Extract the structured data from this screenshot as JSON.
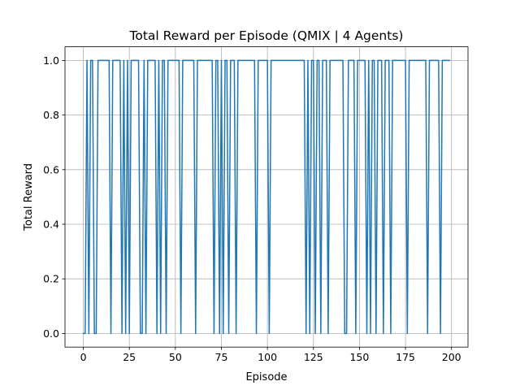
{
  "chart_data": {
    "type": "line",
    "title": "Total Reward per Episode (QMIX | 4 Agents)",
    "xlabel": "Episode",
    "ylabel": "Total Reward",
    "xlim": [
      -9.95,
      208.95
    ],
    "ylim": [
      -0.05,
      1.05
    ],
    "xticks": [
      0,
      25,
      50,
      75,
      100,
      125,
      150,
      175,
      200
    ],
    "yticks": [
      0.0,
      0.2,
      0.4,
      0.6,
      0.8,
      1.0
    ],
    "ytick_labels": [
      "0.0",
      "0.2",
      "0.4",
      "0.6",
      "0.8",
      "1.0"
    ],
    "grid": true,
    "line_color": "#1f77b4",
    "series": [
      {
        "x": [
          0,
          1,
          2,
          3,
          4,
          5,
          6,
          7,
          8,
          9,
          10,
          11,
          12,
          13,
          14,
          15,
          16,
          17,
          18,
          19,
          20,
          21,
          22,
          23,
          24,
          25,
          26,
          27,
          28,
          29,
          30,
          31,
          32,
          33,
          34,
          35,
          36,
          37,
          38,
          39,
          40,
          41,
          42,
          43,
          44,
          45,
          46,
          47,
          48,
          49,
          50,
          51,
          52,
          53,
          54,
          55,
          56,
          57,
          58,
          59,
          60,
          61,
          62,
          63,
          64,
          65,
          66,
          67,
          68,
          69,
          70,
          71,
          72,
          73,
          74,
          75,
          76,
          77,
          78,
          79,
          80,
          81,
          82,
          83,
          84,
          85,
          86,
          87,
          88,
          89,
          90,
          91,
          92,
          93,
          94,
          95,
          96,
          97,
          98,
          99,
          100,
          101,
          102,
          103,
          104,
          105,
          106,
          107,
          108,
          109,
          110,
          111,
          112,
          113,
          114,
          115,
          116,
          117,
          118,
          119,
          120,
          121,
          122,
          123,
          124,
          125,
          126,
          127,
          128,
          129,
          130,
          131,
          132,
          133,
          134,
          135,
          136,
          137,
          138,
          139,
          140,
          141,
          142,
          143,
          144,
          145,
          146,
          147,
          148,
          149,
          150,
          151,
          152,
          153,
          154,
          155,
          156,
          157,
          158,
          159,
          160,
          161,
          162,
          163,
          164,
          165,
          166,
          167,
          168,
          169,
          170,
          171,
          172,
          173,
          174,
          175,
          176,
          177,
          178,
          179,
          180,
          181,
          182,
          183,
          184,
          185,
          186,
          187,
          188,
          189,
          190,
          191,
          192,
          193,
          194,
          195,
          196,
          197,
          198,
          199
        ],
        "values": [
          0,
          0,
          1,
          0,
          1,
          1,
          0,
          0,
          1,
          1,
          1,
          1,
          1,
          1,
          1,
          0,
          1,
          1,
          1,
          1,
          1,
          0,
          1,
          0,
          1,
          0,
          1,
          1,
          1,
          1,
          1,
          0,
          0,
          1,
          0,
          1,
          1,
          1,
          1,
          1,
          0,
          1,
          0,
          1,
          1,
          0,
          1,
          1,
          1,
          1,
          1,
          1,
          1,
          0,
          1,
          1,
          1,
          1,
          1,
          1,
          1,
          0,
          1,
          1,
          1,
          1,
          1,
          1,
          1,
          1,
          1,
          0,
          1,
          1,
          0,
          1,
          0,
          1,
          1,
          0,
          1,
          1,
          1,
          0,
          1,
          1,
          1,
          1,
          1,
          1,
          1,
          1,
          1,
          1,
          0,
          1,
          1,
          1,
          1,
          1,
          1,
          0,
          1,
          1,
          1,
          1,
          1,
          1,
          1,
          1,
          1,
          1,
          1,
          1,
          1,
          1,
          1,
          1,
          1,
          1,
          1,
          0,
          1,
          0,
          1,
          1,
          0,
          1,
          1,
          0,
          1,
          1,
          1,
          0,
          1,
          1,
          1,
          1,
          1,
          1,
          1,
          1,
          0,
          0,
          1,
          1,
          1,
          1,
          0,
          1,
          1,
          1,
          1,
          1,
          0,
          1,
          0,
          1,
          1,
          0,
          1,
          1,
          1,
          0,
          1,
          1,
          1,
          0,
          1,
          1,
          1,
          1,
          1,
          1,
          1,
          1,
          0,
          1,
          1,
          1,
          1,
          1,
          1,
          1,
          1,
          1,
          1,
          0,
          1,
          1,
          1,
          1,
          1,
          1,
          0,
          1,
          1,
          1,
          1,
          1
        ]
      }
    ]
  }
}
